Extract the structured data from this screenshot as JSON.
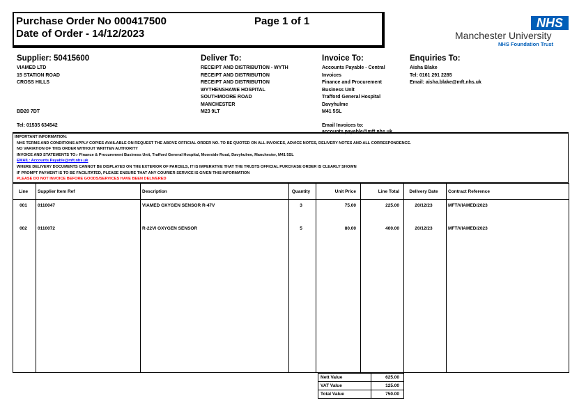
{
  "header": {
    "po_title": "Purchase Order No 000417500",
    "page": "Page 1 of 1",
    "order_date": "Date of Order - 14/12/2023"
  },
  "logo": {
    "nhs": "NHS",
    "org": "Manchester University",
    "sub": "NHS Foundation Trust",
    "color": "#005eb8"
  },
  "supplier": {
    "title": "Supplier: 50415600",
    "lines": [
      "VIAMED LTD",
      "15 STATION ROAD",
      "CROSS HILLS",
      "",
      "",
      "",
      "BD20 7DT"
    ],
    "tel": "Tel: 01535 634542"
  },
  "deliver": {
    "title": "Deliver To:",
    "lines": [
      "RECEIPT AND DISTRIBUTION - WYTH",
      "RECEIPT AND DISTRIBUTION",
      "RECEIPT AND DISTRIBUTION",
      "WYTHENSHAWE HOSPITAL",
      "SOUTHMOORE ROAD",
      "MANCHESTER",
      "M23 9LT"
    ]
  },
  "invoice": {
    "title": "Invoice To:",
    "lines": [
      "Accounts Payable - Central",
      "Invoices",
      "Finance and Procurement",
      "Business Unit",
      "Trafford General Hospital",
      "Davyhulme",
      "M41 5SL"
    ],
    "email_label": "Email Invoices to:",
    "email": "accounts.payable@mft.nhs.uk"
  },
  "enquiries": {
    "title": "Enquiries To:",
    "lines": [
      "Aisha Blake",
      "Tel: 0161 291 2285",
      "Email: aisha.blake@mft.nhs.uk"
    ]
  },
  "important": {
    "title": "IMPORTANT INFORMATION:",
    "lines": [
      "NHS TERMS AND CONDITIONS APPLY COPIES AVAILABLE ON REQUEST THE ABOVE OFFICIAL ORDER NO. TO BE QUOTED ON ALL INVOICES, ADVICE NOTES, DELIVERY NOTES AND ALL CORRESPONDENCE.",
      "NO VARIATION OF THIS ORDER WITHOUT WRITTEN AUTHORITY",
      "INVOICE AND STATEMENTS TO:- Finance & Procurement Business Unit, Trafford General Hospital, Moorside Road, Davyhulme, Manchester, M41 5SL"
    ],
    "email": "EMAIL: Accounts.Payable@mft.nhs.uk",
    "lines2": [
      "WHERE DELIVERY DOCUMENTS CANNOT BE DISPLAYED ON THE EXTERIOR OF PARCELS, IT IS IMPERATIVE THAT THE TRUSTS OFFICIAL PURCHASE ORDER IS CLEARLY SHOWN",
      "IF PROMPT PAYMENT IS TO BE FACILITATED, PLEASE ENSURE THAT ANY COURIER SERVICE IS GIVEN THIS INFORMATION"
    ],
    "warning": "PLEASE DO NOT INVOICE BEFORE GOODS/SERVICES HAVE BEEN DELIVERED",
    "warning_color": "#ff0000",
    "link_color": "#0000ff"
  },
  "table": {
    "columns": [
      "Line",
      "Supplier Item Ref",
      "Description",
      "Quantity",
      "Unit Price",
      "Line Total",
      "Delivery Date",
      "Contract Reference"
    ],
    "rows": [
      [
        "001",
        "0110047",
        "VIAMED OXYGEN SENSOR R-47V",
        "3",
        "75.00",
        "225.00",
        "20/12/23",
        "MFT/VIAMED/2023"
      ],
      [
        "002",
        "0110072",
        "R-22VI OXYGEN SENSOR",
        "5",
        "80.00",
        "400.00",
        "20/12/23",
        "MFT/VIAMED/2023"
      ]
    ]
  },
  "totals": [
    [
      "Nett Value",
      "625.00"
    ],
    [
      "VAT Value",
      "125.00"
    ],
    [
      "Total Value",
      "750.00"
    ]
  ]
}
